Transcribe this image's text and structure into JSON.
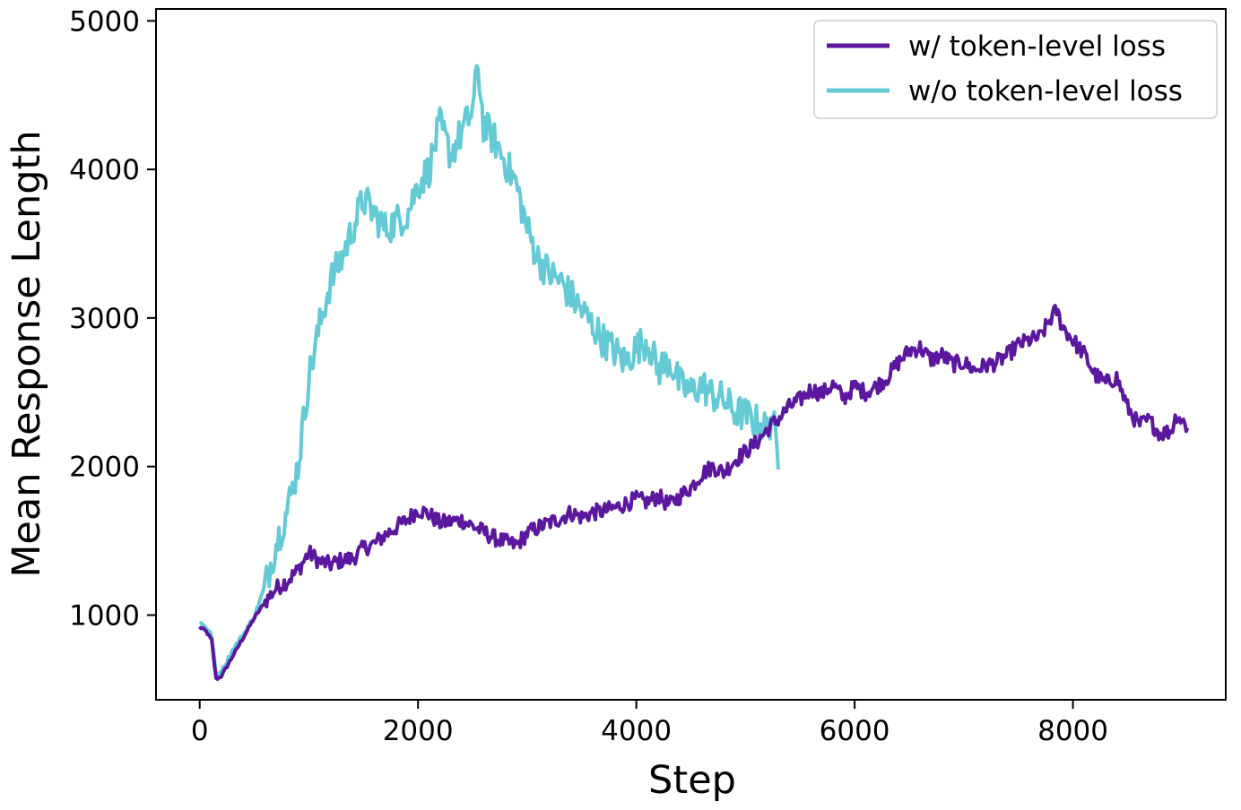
{
  "chart_data": {
    "type": "line",
    "title": "",
    "xlabel": "Step",
    "ylabel": "Mean Response Length",
    "xlim": [
      -400,
      9400
    ],
    "ylim": [
      430,
      5080
    ],
    "xticks": [
      0,
      2000,
      4000,
      6000,
      8000
    ],
    "yticks": [
      1000,
      2000,
      3000,
      4000,
      5000
    ],
    "grid": false,
    "legend_position": "top-right",
    "series": [
      {
        "name": "w/ token-level loss",
        "color": "#5b189e",
        "x": [
          0,
          60,
          110,
          150,
          200,
          300,
          400,
          500,
          600,
          700,
          800,
          900,
          1000,
          1100,
          1200,
          1300,
          1400,
          1500,
          1600,
          1700,
          1800,
          1900,
          2000,
          2100,
          2200,
          2300,
          2400,
          2500,
          2600,
          2700,
          2800,
          2900,
          3000,
          3100,
          3200,
          3300,
          3400,
          3500,
          3600,
          3700,
          3800,
          3900,
          4000,
          4100,
          4200,
          4300,
          4400,
          4500,
          4600,
          4700,
          4800,
          4900,
          5000,
          5100,
          5200,
          5300,
          5400,
          5500,
          5600,
          5700,
          5800,
          5900,
          6000,
          6100,
          6200,
          6300,
          6400,
          6500,
          6600,
          6700,
          6800,
          6900,
          7000,
          7100,
          7200,
          7300,
          7400,
          7500,
          7600,
          7700,
          7800,
          7850,
          7900,
          8000,
          8100,
          8200,
          8300,
          8400,
          8500,
          8600,
          8700,
          8800,
          8900,
          8950,
          9000,
          9050
        ],
        "y": [
          920,
          890,
          830,
          570,
          590,
          720,
          850,
          980,
          1090,
          1180,
          1230,
          1300,
          1420,
          1360,
          1340,
          1370,
          1380,
          1450,
          1480,
          1540,
          1590,
          1640,
          1710,
          1680,
          1620,
          1630,
          1640,
          1600,
          1560,
          1520,
          1490,
          1470,
          1550,
          1590,
          1620,
          1650,
          1690,
          1660,
          1690,
          1700,
          1720,
          1750,
          1780,
          1760,
          1800,
          1740,
          1800,
          1860,
          1950,
          2000,
          1960,
          2040,
          2100,
          2160,
          2250,
          2320,
          2400,
          2450,
          2520,
          2490,
          2550,
          2460,
          2540,
          2500,
          2540,
          2600,
          2700,
          2780,
          2800,
          2720,
          2750,
          2690,
          2700,
          2650,
          2680,
          2700,
          2750,
          2820,
          2850,
          2870,
          3000,
          3050,
          2950,
          2850,
          2760,
          2620,
          2560,
          2600,
          2400,
          2280,
          2310,
          2220,
          2240,
          2350,
          2310,
          2260
        ]
      },
      {
        "name": "w/o token-level loss",
        "color": "#63cad6",
        "x": [
          0,
          60,
          110,
          150,
          200,
          300,
          400,
          500,
          600,
          700,
          800,
          900,
          1000,
          1100,
          1200,
          1300,
          1400,
          1500,
          1600,
          1700,
          1800,
          1900,
          2000,
          2100,
          2200,
          2300,
          2400,
          2500,
          2550,
          2600,
          2700,
          2800,
          2900,
          3000,
          3100,
          3200,
          3300,
          3400,
          3500,
          3600,
          3700,
          3800,
          3900,
          4000,
          4100,
          4200,
          4300,
          4400,
          4500,
          4600,
          4700,
          4800,
          4900,
          5000,
          5100,
          5200,
          5250,
          5300
        ],
        "y": [
          950,
          920,
          860,
          600,
          620,
          760,
          870,
          990,
          1200,
          1480,
          1700,
          2000,
          2600,
          2950,
          3250,
          3400,
          3600,
          3800,
          3700,
          3600,
          3650,
          3700,
          3900,
          4000,
          4300,
          4100,
          4250,
          4400,
          4700,
          4300,
          4200,
          4050,
          3900,
          3600,
          3400,
          3300,
          3250,
          3150,
          3050,
          2950,
          2850,
          2780,
          2700,
          2800,
          2850,
          2650,
          2720,
          2550,
          2500,
          2550,
          2480,
          2450,
          2370,
          2350,
          2300,
          2250,
          2350,
          1980
        ]
      }
    ]
  }
}
